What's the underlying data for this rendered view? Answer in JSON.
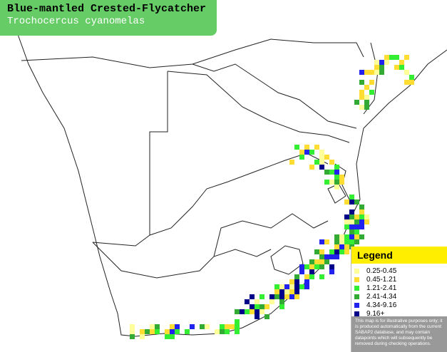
{
  "header": {
    "title": "Blue-mantled Crested-Flycatcher",
    "subtitle": "Trochocercus cyanomelas"
  },
  "legend": {
    "title": "Legend",
    "items": [
      {
        "label": "0.25-0.45",
        "color": "#ffff99"
      },
      {
        "label": "0.45-1.21",
        "color": "#ffdd33"
      },
      {
        "label": "1.21-2.41",
        "color": "#33ee33"
      },
      {
        "label": "2.41-4.34",
        "color": "#33aa33"
      },
      {
        "label": "4.34-9.16",
        "color": "#2222ee"
      },
      {
        "label": "9.16+",
        "color": "#000088"
      }
    ],
    "note": "This map is for illustrative purposes only; it is produced automatically from the current SABAP2 database, and may contain datapoints which will subsequently be removed during checking operations."
  }
}
